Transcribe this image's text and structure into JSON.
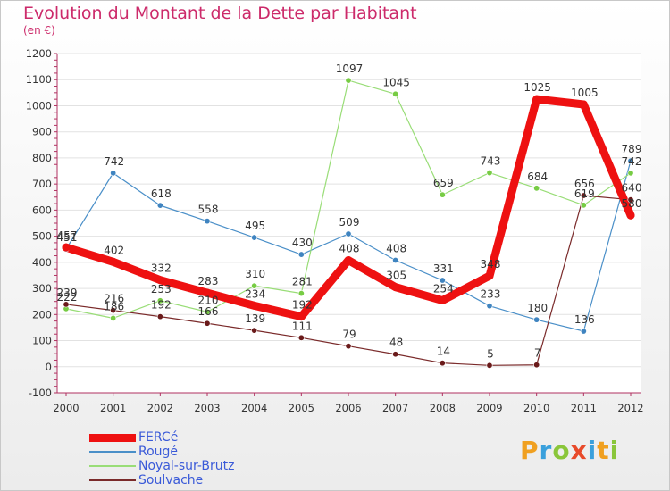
{
  "chart_data": {
    "type": "line",
    "title": "Evolution du Montant de la Dette par Habitant",
    "subtitle": "(en €)",
    "x": [
      "2000",
      "2001",
      "2002",
      "2003",
      "2004",
      "2005",
      "2006",
      "2007",
      "2008",
      "2009",
      "2010",
      "2011",
      "2012"
    ],
    "ylim": [
      -100,
      1200
    ],
    "yticks": [
      -100,
      0,
      100,
      200,
      300,
      400,
      500,
      600,
      700,
      800,
      900,
      1000,
      1100,
      1200
    ],
    "grid": "horizontal",
    "legend_position": "bottom-left",
    "series": [
      {
        "name": "Rougé",
        "color": "#4a8fc8",
        "marker": "#3f84c0",
        "values": [
          451,
          742,
          618,
          558,
          495,
          430,
          509,
          408,
          331,
          233,
          180,
          136,
          789
        ]
      },
      {
        "name": "Noyal-sur-Brutz",
        "color": "#99dd77",
        "marker": "#77cc44",
        "values": [
          222,
          186,
          253,
          210,
          310,
          281,
          1097,
          1045,
          659,
          743,
          684,
          619,
          742
        ]
      },
      {
        "name": "Soulvache",
        "color": "#7a2a2a",
        "marker": "#6a1a1a",
        "values": [
          239,
          216,
          192,
          166,
          139,
          111,
          79,
          48,
          14,
          5,
          7,
          656,
          640
        ]
      },
      {
        "name": "FERCé",
        "color": "#ee1111",
        "marker": "#ee1111",
        "thick": true,
        "values": [
          457,
          402,
          332,
          283,
          234,
          192,
          408,
          305,
          254,
          348,
          1025,
          1005,
          580
        ]
      }
    ],
    "legend_order": [
      "FERCé",
      "Rougé",
      "Noyal-sur-Brutz",
      "Soulvache"
    ]
  },
  "watermark": {
    "letters": [
      "P",
      "r",
      "o",
      "x",
      "i",
      "t",
      "i"
    ],
    "colors": [
      "#f0a020",
      "#3aa0dc",
      "#8ac63a",
      "#e84a2a",
      "#3aa0dc",
      "#f0a020",
      "#8ac63a"
    ]
  }
}
